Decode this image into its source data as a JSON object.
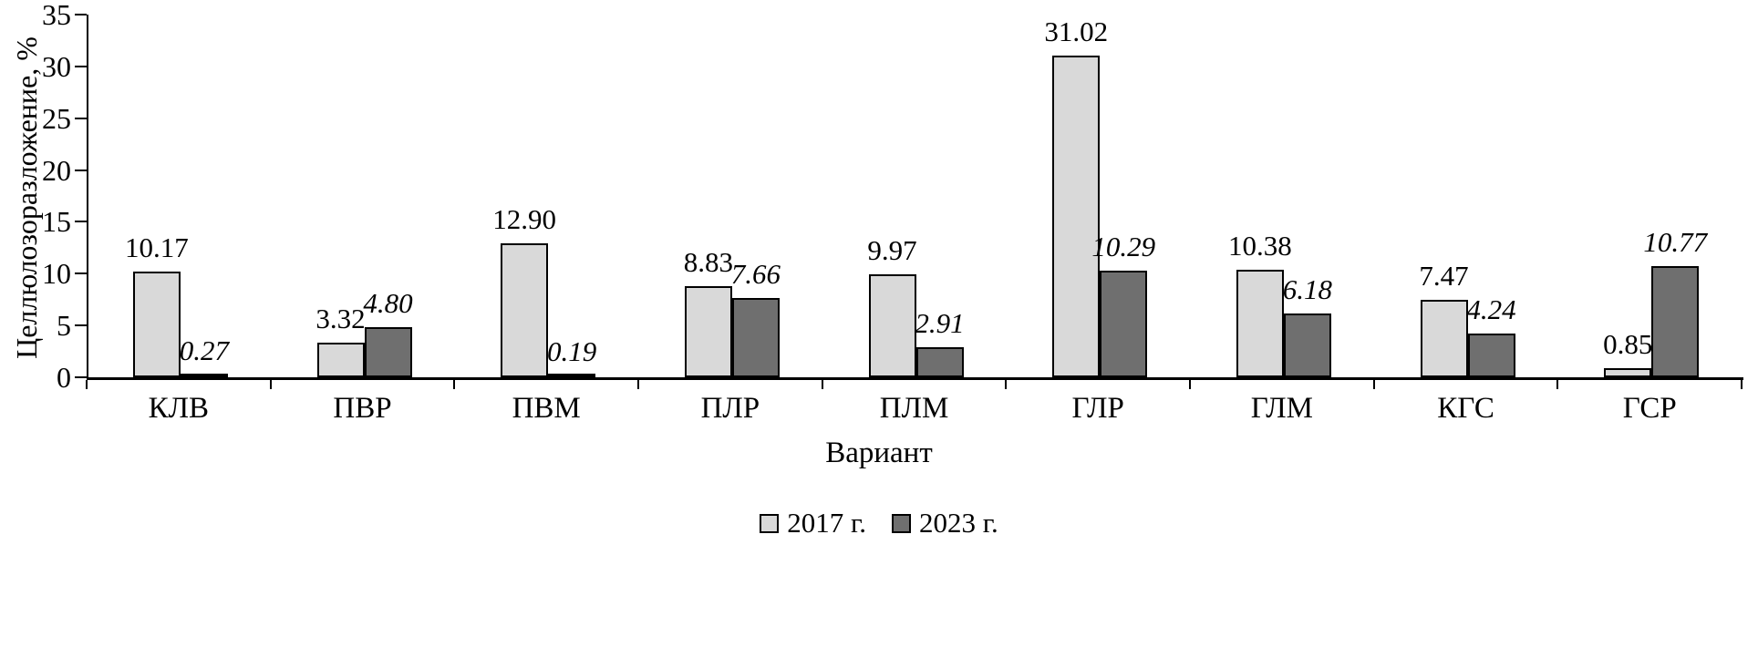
{
  "chart_data": {
    "type": "bar",
    "title": "",
    "xlabel": "Вариант",
    "ylabel": "Целлюлозоразложение, %",
    "ylim": [
      0,
      35
    ],
    "yticks": [
      0,
      5,
      10,
      15,
      20,
      25,
      30,
      35
    ],
    "grid": false,
    "legend_position": "bottom",
    "value_label_decimals": 2,
    "categories": [
      "КЛВ",
      "ПВР",
      "ПВМ",
      "ПЛР",
      "ПЛМ",
      "ГЛР",
      "ГЛМ",
      "КГС",
      "ГСР"
    ],
    "series": [
      {
        "key": "2017",
        "name": "2017 г.",
        "color": "#d9d9d9",
        "label_style": "normal",
        "values": [
          10.17,
          3.32,
          12.9,
          8.83,
          9.97,
          31.02,
          10.38,
          7.47,
          0.85
        ]
      },
      {
        "key": "2023",
        "name": "2023 г.",
        "color": "#6f6f6f",
        "label_style": "italic",
        "values": [
          0.27,
          4.8,
          0.19,
          7.66,
          2.91,
          10.29,
          6.18,
          4.24,
          10.77
        ]
      }
    ]
  }
}
